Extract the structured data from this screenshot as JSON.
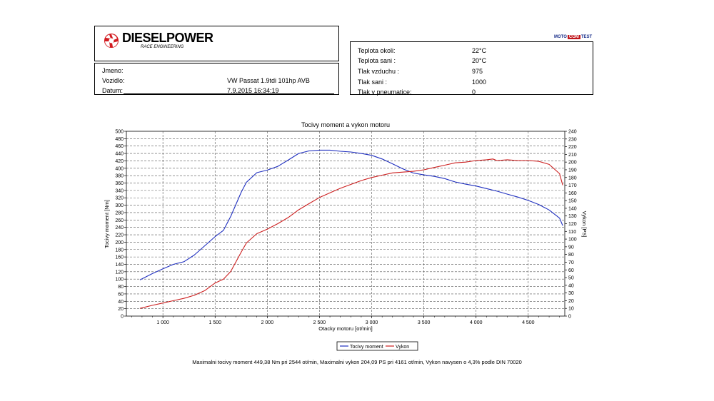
{
  "brand": {
    "name": "DIESELPOWER",
    "subtitle": "RACE ENGINEERING"
  },
  "motocom": {
    "part1": "MOTO",
    "part2": "COM",
    "part3": "TEST"
  },
  "vehicle": {
    "rows": [
      {
        "label": "Jmeno:",
        "value": ""
      },
      {
        "label": "Vozidlo:",
        "value": "VW Passat 1.9tdi 101hp AVB"
      },
      {
        "label": "Datum:",
        "value": "7.9.2015 16:34:19"
      }
    ]
  },
  "conditions": {
    "rows": [
      {
        "label": "Teplota okoli:",
        "value": "22°C"
      },
      {
        "label": "Teplota sani :",
        "value": "20°C"
      },
      {
        "label": "Tlak vzduchu :",
        "value": "975"
      },
      {
        "label": "Tlak sani :",
        "value": "1000"
      },
      {
        "label": "Tlak v pneumatice:",
        "value": "0"
      }
    ]
  },
  "chart_data": {
    "type": "line",
    "title": "Tocivy moment a vykon motoru",
    "xlabel": "Otacky motoru [ot/min]",
    "ylabel_left": "Tocivy moment [Nm]",
    "ylabel_right": "Vykon [PS]",
    "xlim": [
      650,
      4850
    ],
    "ylim_left": [
      0,
      500
    ],
    "ylim_right": [
      0,
      240
    ],
    "x_ticks": [
      "1 000",
      "1 500",
      "2 000",
      "2 500",
      "3 000",
      "3 500",
      "4 000",
      "4 500"
    ],
    "x_tick_values": [
      1000,
      1500,
      2000,
      2500,
      3000,
      3500,
      4000,
      4500
    ],
    "y_ticks_left": [
      0,
      20,
      40,
      60,
      80,
      100,
      120,
      140,
      160,
      180,
      200,
      220,
      240,
      260,
      280,
      300,
      320,
      340,
      360,
      380,
      400,
      420,
      440,
      460,
      480,
      500
    ],
    "y_ticks_right": [
      0,
      10,
      20,
      30,
      40,
      50,
      60,
      70,
      80,
      90,
      100,
      110,
      120,
      130,
      140,
      150,
      160,
      170,
      180,
      190,
      200,
      210,
      220,
      230,
      240
    ],
    "grid": true,
    "legend_position": "bottom",
    "series": [
      {
        "name": "Tocivy moment",
        "axis": "left",
        "color": "#1f2fbf",
        "x": [
          780,
          900,
          1000,
          1100,
          1200,
          1300,
          1400,
          1500,
          1580,
          1650,
          1750,
          1800,
          1900,
          2000,
          2100,
          2200,
          2300,
          2400,
          2500,
          2550,
          2600,
          2700,
          2800,
          2900,
          3000,
          3100,
          3200,
          3300,
          3400,
          3500,
          3600,
          3700,
          3800,
          3900,
          4000,
          4100,
          4200,
          4300,
          4400,
          4500,
          4600,
          4700,
          4800,
          4830
        ],
        "y": [
          98,
          115,
          128,
          140,
          147,
          165,
          190,
          215,
          232,
          270,
          335,
          362,
          388,
          395,
          405,
          422,
          440,
          447,
          449,
          449,
          449,
          446,
          444,
          440,
          435,
          425,
          412,
          398,
          387,
          382,
          378,
          372,
          363,
          357,
          352,
          345,
          338,
          330,
          322,
          313,
          302,
          287,
          265,
          245
        ]
      },
      {
        "name": "Vykon",
        "axis": "right",
        "color": "#cc1f1f",
        "x": [
          780,
          900,
          1000,
          1100,
          1200,
          1300,
          1400,
          1500,
          1580,
          1650,
          1750,
          1800,
          1900,
          2000,
          2100,
          2200,
          2300,
          2400,
          2500,
          2600,
          2700,
          2800,
          2900,
          3000,
          3100,
          3200,
          3300,
          3400,
          3500,
          3600,
          3700,
          3800,
          3900,
          4000,
          4100,
          4161,
          4200,
          4300,
          4400,
          4500,
          4600,
          4700,
          4800,
          4830
        ],
        "y": [
          10,
          14,
          17,
          20,
          23,
          27,
          33,
          43,
          48,
          58,
          83,
          95,
          107,
          113,
          120,
          128,
          138,
          146,
          154,
          160,
          166,
          171,
          176,
          180,
          183,
          186,
          187,
          188,
          190,
          193,
          196,
          199,
          200,
          202,
          203,
          204,
          202,
          203,
          202,
          202,
          201,
          197,
          185,
          170
        ]
      }
    ]
  },
  "footer": "Maximalni tocivy moment 449,38 Nm pri 2544 ot/min,  Maximalni vykon 204,09 PS pri 4161 ot/min,  Vykon navysen o 4,3% podle DIN 70020"
}
